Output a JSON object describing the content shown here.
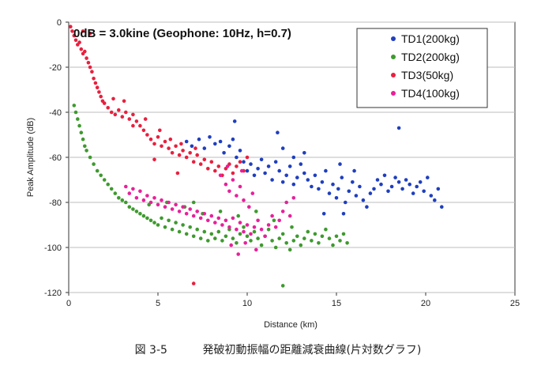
{
  "chart_data": {
    "type": "scatter",
    "annotation": "0dB = 3.0kine (Geophone: 10Hz, h=0.7)",
    "xlabel": "Distance (km)",
    "ylabel": "Peak Amplitude (dB)",
    "xlim": [
      0,
      25
    ],
    "ylim": [
      -120,
      0
    ],
    "xticks": [
      0,
      5,
      10,
      15,
      20,
      25
    ],
    "yticks": [
      0,
      -20,
      -40,
      -60,
      -80,
      -100,
      -120
    ],
    "grid": true,
    "legend_position": "top-right",
    "series": [
      {
        "name": "TD1(200kg)",
        "color": "#1f3fbf",
        "points": [
          [
            6.6,
            -53
          ],
          [
            6.9,
            -55
          ],
          [
            7.3,
            -52
          ],
          [
            7.6,
            -56
          ],
          [
            7.9,
            -51
          ],
          [
            8.2,
            -54
          ],
          [
            8.5,
            -53
          ],
          [
            8.7,
            -58
          ],
          [
            9.0,
            -55
          ],
          [
            9.2,
            -52
          ],
          [
            9.4,
            -60
          ],
          [
            9.6,
            -57
          ],
          [
            9.8,
            -62
          ],
          [
            10.0,
            -66
          ],
          [
            10.2,
            -63
          ],
          [
            10.4,
            -68
          ],
          [
            10.6,
            -65
          ],
          [
            10.8,
            -61
          ],
          [
            11.0,
            -67
          ],
          [
            11.2,
            -64
          ],
          [
            11.4,
            -70
          ],
          [
            11.6,
            -62
          ],
          [
            11.8,
            -66
          ],
          [
            12.0,
            -71
          ],
          [
            12.2,
            -68
          ],
          [
            12.4,
            -64
          ],
          [
            12.6,
            -72
          ],
          [
            12.8,
            -69
          ],
          [
            13.0,
            -63
          ],
          [
            13.2,
            -67
          ],
          [
            13.4,
            -70
          ],
          [
            13.6,
            -73
          ],
          [
            13.8,
            -68
          ],
          [
            14.0,
            -74
          ],
          [
            14.2,
            -71
          ],
          [
            14.4,
            -66
          ],
          [
            14.6,
            -76
          ],
          [
            14.8,
            -72
          ],
          [
            15.0,
            -78
          ],
          [
            15.1,
            -74
          ],
          [
            15.3,
            -69
          ],
          [
            15.5,
            -80
          ],
          [
            15.7,
            -75
          ],
          [
            15.9,
            -71
          ],
          [
            16.1,
            -77
          ],
          [
            16.3,
            -73
          ],
          [
            16.5,
            -79
          ],
          [
            16.7,
            -82
          ],
          [
            16.9,
            -76
          ],
          [
            17.1,
            -74
          ],
          [
            17.3,
            -70
          ],
          [
            17.5,
            -72
          ],
          [
            17.7,
            -68
          ],
          [
            17.9,
            -75
          ],
          [
            18.1,
            -73
          ],
          [
            18.3,
            -69
          ],
          [
            18.5,
            -71
          ],
          [
            18.7,
            -74
          ],
          [
            18.9,
            -70
          ],
          [
            19.1,
            -72
          ],
          [
            19.3,
            -76
          ],
          [
            19.5,
            -73
          ],
          [
            19.7,
            -71
          ],
          [
            19.9,
            -75
          ],
          [
            20.1,
            -69
          ],
          [
            20.3,
            -77
          ],
          [
            20.5,
            -79
          ],
          [
            20.7,
            -74
          ],
          [
            20.9,
            -82
          ],
          [
            18.5,
            -47
          ],
          [
            12.0,
            -56
          ],
          [
            12.6,
            -60
          ],
          [
            13.2,
            -58
          ],
          [
            9.3,
            -44
          ],
          [
            11.7,
            -49
          ],
          [
            15.2,
            -63
          ],
          [
            16.0,
            -66
          ],
          [
            14.3,
            -85
          ],
          [
            15.4,
            -85
          ]
        ]
      },
      {
        "name": "TD2(200kg)",
        "color": "#3e9a2e",
        "points": [
          [
            0.3,
            -37
          ],
          [
            0.4,
            -40
          ],
          [
            0.5,
            -43
          ],
          [
            0.6,
            -46
          ],
          [
            0.7,
            -49
          ],
          [
            0.8,
            -52
          ],
          [
            0.9,
            -55
          ],
          [
            1.0,
            -57
          ],
          [
            1.2,
            -60
          ],
          [
            1.4,
            -63
          ],
          [
            1.6,
            -66
          ],
          [
            1.8,
            -68
          ],
          [
            2.0,
            -70
          ],
          [
            2.2,
            -72
          ],
          [
            2.4,
            -74
          ],
          [
            2.6,
            -76
          ],
          [
            2.8,
            -78
          ],
          [
            3.0,
            -79
          ],
          [
            3.2,
            -80
          ],
          [
            3.4,
            -82
          ],
          [
            3.6,
            -83
          ],
          [
            3.8,
            -84
          ],
          [
            4.0,
            -85
          ],
          [
            4.2,
            -86
          ],
          [
            4.4,
            -87
          ],
          [
            4.6,
            -88
          ],
          [
            4.8,
            -89
          ],
          [
            5.0,
            -90
          ],
          [
            5.2,
            -87
          ],
          [
            5.4,
            -91
          ],
          [
            5.6,
            -88
          ],
          [
            5.8,
            -92
          ],
          [
            6.0,
            -89
          ],
          [
            6.2,
            -93
          ],
          [
            6.4,
            -90
          ],
          [
            6.6,
            -94
          ],
          [
            6.8,
            -91
          ],
          [
            7.0,
            -95
          ],
          [
            7.2,
            -92
          ],
          [
            7.4,
            -96
          ],
          [
            7.6,
            -93
          ],
          [
            7.8,
            -97
          ],
          [
            8.0,
            -94
          ],
          [
            8.2,
            -96
          ],
          [
            8.4,
            -93
          ],
          [
            8.6,
            -97
          ],
          [
            8.8,
            -95
          ],
          [
            9.0,
            -92
          ],
          [
            9.2,
            -96
          ],
          [
            9.4,
            -98
          ],
          [
            9.6,
            -94
          ],
          [
            9.8,
            -91
          ],
          [
            10.0,
            -95
          ],
          [
            10.2,
            -97
          ],
          [
            10.4,
            -93
          ],
          [
            10.6,
            -96
          ],
          [
            10.8,
            -99
          ],
          [
            11.0,
            -95
          ],
          [
            11.2,
            -92
          ],
          [
            11.4,
            -97
          ],
          [
            11.6,
            -100
          ],
          [
            11.8,
            -96
          ],
          [
            12.0,
            -94
          ],
          [
            12.2,
            -98
          ],
          [
            12.4,
            -101
          ],
          [
            12.6,
            -97
          ],
          [
            12.8,
            -95
          ],
          [
            13.0,
            -99
          ],
          [
            13.2,
            -96
          ],
          [
            13.4,
            -93
          ],
          [
            13.6,
            -97
          ],
          [
            13.8,
            -94
          ],
          [
            14.0,
            -98
          ],
          [
            14.2,
            -95
          ],
          [
            14.4,
            -92
          ],
          [
            14.6,
            -96
          ],
          [
            14.8,
            -99
          ],
          [
            15.0,
            -95
          ],
          [
            15.2,
            -97
          ],
          [
            15.4,
            -94
          ],
          [
            15.6,
            -98
          ],
          [
            5.5,
            -80
          ],
          [
            6.5,
            -82
          ],
          [
            7.5,
            -85
          ],
          [
            4.5,
            -81
          ],
          [
            8.5,
            -84
          ],
          [
            9.5,
            -86
          ],
          [
            10.5,
            -84
          ],
          [
            11.5,
            -88
          ],
          [
            7.0,
            -80
          ],
          [
            12.5,
            -91
          ],
          [
            12.0,
            -117
          ]
        ]
      },
      {
        "name": "TD3(50kg)",
        "color": "#e8203e",
        "points": [
          [
            0.1,
            -2
          ],
          [
            0.2,
            -4
          ],
          [
            0.3,
            -6
          ],
          [
            0.4,
            -8
          ],
          [
            0.5,
            -10
          ],
          [
            0.6,
            -9
          ],
          [
            0.7,
            -12
          ],
          [
            0.8,
            -14
          ],
          [
            0.9,
            -13
          ],
          [
            1.0,
            -16
          ],
          [
            1.1,
            -18
          ],
          [
            1.2,
            -20
          ],
          [
            1.3,
            -22
          ],
          [
            1.4,
            -25
          ],
          [
            1.5,
            -27
          ],
          [
            1.6,
            -29
          ],
          [
            1.7,
            -31
          ],
          [
            1.8,
            -33
          ],
          [
            1.9,
            -35
          ],
          [
            2.0,
            -36
          ],
          [
            2.2,
            -38
          ],
          [
            2.4,
            -40
          ],
          [
            2.6,
            -41
          ],
          [
            2.8,
            -39
          ],
          [
            3.0,
            -42
          ],
          [
            3.2,
            -40
          ],
          [
            3.4,
            -43
          ],
          [
            3.6,
            -41
          ],
          [
            3.8,
            -44
          ],
          [
            4.0,
            -46
          ],
          [
            4.2,
            -48
          ],
          [
            4.4,
            -50
          ],
          [
            4.6,
            -52
          ],
          [
            4.8,
            -54
          ],
          [
            5.0,
            -51
          ],
          [
            5.2,
            -55
          ],
          [
            5.4,
            -53
          ],
          [
            5.6,
            -56
          ],
          [
            5.8,
            -58
          ],
          [
            6.0,
            -55
          ],
          [
            6.2,
            -59
          ],
          [
            6.4,
            -57
          ],
          [
            6.6,
            -60
          ],
          [
            6.8,
            -58
          ],
          [
            7.0,
            -62
          ],
          [
            7.2,
            -59
          ],
          [
            7.4,
            -63
          ],
          [
            7.6,
            -61
          ],
          [
            7.8,
            -65
          ],
          [
            8.0,
            -62
          ],
          [
            8.2,
            -66
          ],
          [
            8.4,
            -64
          ],
          [
            8.6,
            -68
          ],
          [
            8.8,
            -65
          ],
          [
            9.0,
            -63
          ],
          [
            9.2,
            -67
          ],
          [
            9.4,
            -64
          ],
          [
            9.6,
            -62
          ],
          [
            9.8,
            -66
          ],
          [
            10.0,
            -60
          ],
          [
            3.1,
            -35
          ],
          [
            3.6,
            -46
          ],
          [
            4.3,
            -43
          ],
          [
            5.1,
            -48
          ],
          [
            5.7,
            -52
          ],
          [
            6.3,
            -54
          ],
          [
            7.1,
            -56
          ],
          [
            2.5,
            -34
          ],
          [
            1.2,
            -5
          ],
          [
            0.8,
            -4
          ],
          [
            4.8,
            -61
          ],
          [
            6.1,
            -67
          ],
          [
            7.0,
            -116
          ]
        ]
      },
      {
        "name": "TD4(100kg)",
        "color": "#e8209a",
        "points": [
          [
            3.2,
            -73
          ],
          [
            3.4,
            -76
          ],
          [
            3.6,
            -74
          ],
          [
            3.8,
            -78
          ],
          [
            4.0,
            -75
          ],
          [
            4.2,
            -79
          ],
          [
            4.4,
            -77
          ],
          [
            4.6,
            -80
          ],
          [
            4.8,
            -78
          ],
          [
            5.0,
            -81
          ],
          [
            5.2,
            -79
          ],
          [
            5.4,
            -82
          ],
          [
            5.6,
            -80
          ],
          [
            5.8,
            -83
          ],
          [
            6.0,
            -81
          ],
          [
            6.2,
            -84
          ],
          [
            6.4,
            -82
          ],
          [
            6.6,
            -85
          ],
          [
            6.8,
            -83
          ],
          [
            7.0,
            -86
          ],
          [
            7.2,
            -84
          ],
          [
            7.4,
            -87
          ],
          [
            7.6,
            -85
          ],
          [
            7.8,
            -88
          ],
          [
            8.0,
            -86
          ],
          [
            8.2,
            -89
          ],
          [
            8.4,
            -87
          ],
          [
            8.6,
            -90
          ],
          [
            8.8,
            -88
          ],
          [
            9.0,
            -91
          ],
          [
            9.2,
            -87
          ],
          [
            9.4,
            -92
          ],
          [
            9.6,
            -89
          ],
          [
            9.8,
            -93
          ],
          [
            10.0,
            -90
          ],
          [
            10.2,
            -94
          ],
          [
            10.4,
            -91
          ],
          [
            10.6,
            -88
          ],
          [
            10.8,
            -92
          ],
          [
            11.0,
            -95
          ],
          [
            11.2,
            -90
          ],
          [
            11.4,
            -86
          ],
          [
            11.6,
            -91
          ],
          [
            11.8,
            -88
          ],
          [
            12.0,
            -84
          ],
          [
            12.2,
            -80
          ],
          [
            12.4,
            -86
          ],
          [
            12.6,
            -78
          ],
          [
            8.5,
            -68
          ],
          [
            8.8,
            -72
          ],
          [
            9.0,
            -75
          ],
          [
            9.2,
            -70
          ],
          [
            9.4,
            -77
          ],
          [
            9.6,
            -73
          ],
          [
            9.8,
            -79
          ],
          [
            10.1,
            -82
          ],
          [
            10.3,
            -76
          ],
          [
            9.1,
            -99
          ],
          [
            9.5,
            -103
          ],
          [
            9.9,
            -98
          ],
          [
            10.5,
            -101
          ],
          [
            8.9,
            -64
          ],
          [
            9.7,
            -66
          ]
        ]
      }
    ]
  },
  "caption": {
    "figure_number": "図 3-5",
    "text": "発破初動振幅の距離減衰曲線(片対数グラフ)"
  }
}
